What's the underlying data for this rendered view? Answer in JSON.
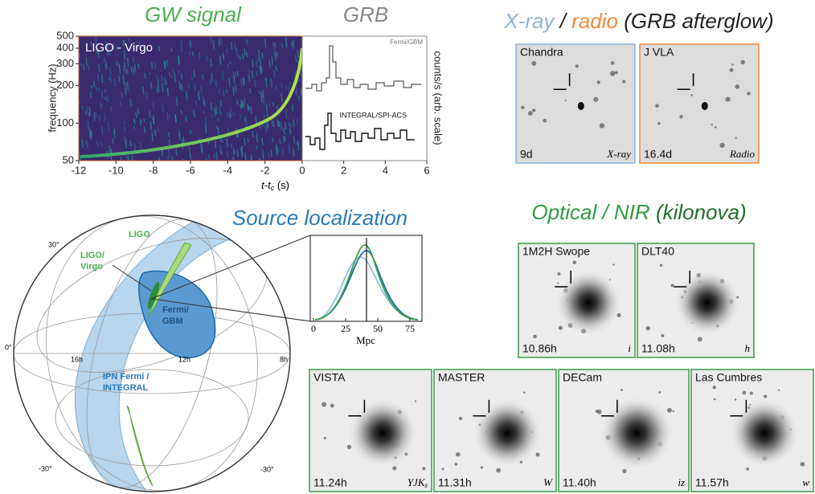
{
  "gw_panel": {
    "title": "GW signal",
    "label": "LIGO - Virgo",
    "y_label": "frequency (Hz)",
    "ylim": [
      50,
      500
    ],
    "yticks": [
      50,
      100,
      200,
      300,
      400,
      500
    ],
    "log_y": true,
    "xlim": [
      -12,
      0
    ],
    "xticks": [
      -12,
      -10,
      -8,
      -6,
      -4,
      -2,
      0
    ]
  },
  "grb_panel": {
    "title": "GRB",
    "xlim": [
      0,
      6
    ],
    "xticks": [
      2,
      4,
      6
    ],
    "labels": [
      "Fermi/GBM",
      "INTEGRAL/SPI-ACS"
    ],
    "y_label": "counts/s (arb. scale)"
  },
  "time_axis_label": {
    "main": "t-t",
    "sub": "c",
    "unit": " (s)"
  },
  "afterglow": {
    "title": [
      "X-ray",
      " / ",
      "radio",
      " (GRB afterglow)"
    ],
    "panels": [
      {
        "instrument": "Chandra",
        "time": "9d",
        "band": "X-ray"
      },
      {
        "instrument": "J VLA",
        "time": "16.4d",
        "band": "Radio"
      }
    ]
  },
  "localization": {
    "title": "Source localization",
    "labels": [
      "LIGO",
      "LIGO/",
      "Virgo",
      "Fermi/",
      "GBM",
      "IPN Fermi /",
      "INTEGRAL"
    ],
    "dec_labels": [
      "30°",
      "0°",
      "-30°",
      "-30°"
    ],
    "ra_labels": [
      "16h",
      "12h",
      "8h"
    ],
    "inset": {
      "xlim": [
        -2.5,
        84.4
      ],
      "xticks": [
        0,
        25,
        50,
        75
      ],
      "x_label": "Mpc"
    }
  },
  "kilonova": {
    "title": [
      "Optical / NIR",
      " (kilonova)"
    ],
    "panels": [
      {
        "instrument": "1M2H Swope",
        "time": "10.86h",
        "band": "i"
      },
      {
        "instrument": "DLT40",
        "time": "11.08h",
        "band": "h"
      },
      {
        "instrument": "VISTA",
        "time": "11.24h",
        "band": "YJK",
        "band_sub": "s"
      },
      {
        "instrument": "MASTER",
        "time": "11.31h",
        "band": "W"
      },
      {
        "instrument": "DECam",
        "time": "11.40h",
        "band": "iz"
      },
      {
        "instrument": "Las Cumbres",
        "time": "11.57h",
        "band": "w"
      }
    ]
  }
}
